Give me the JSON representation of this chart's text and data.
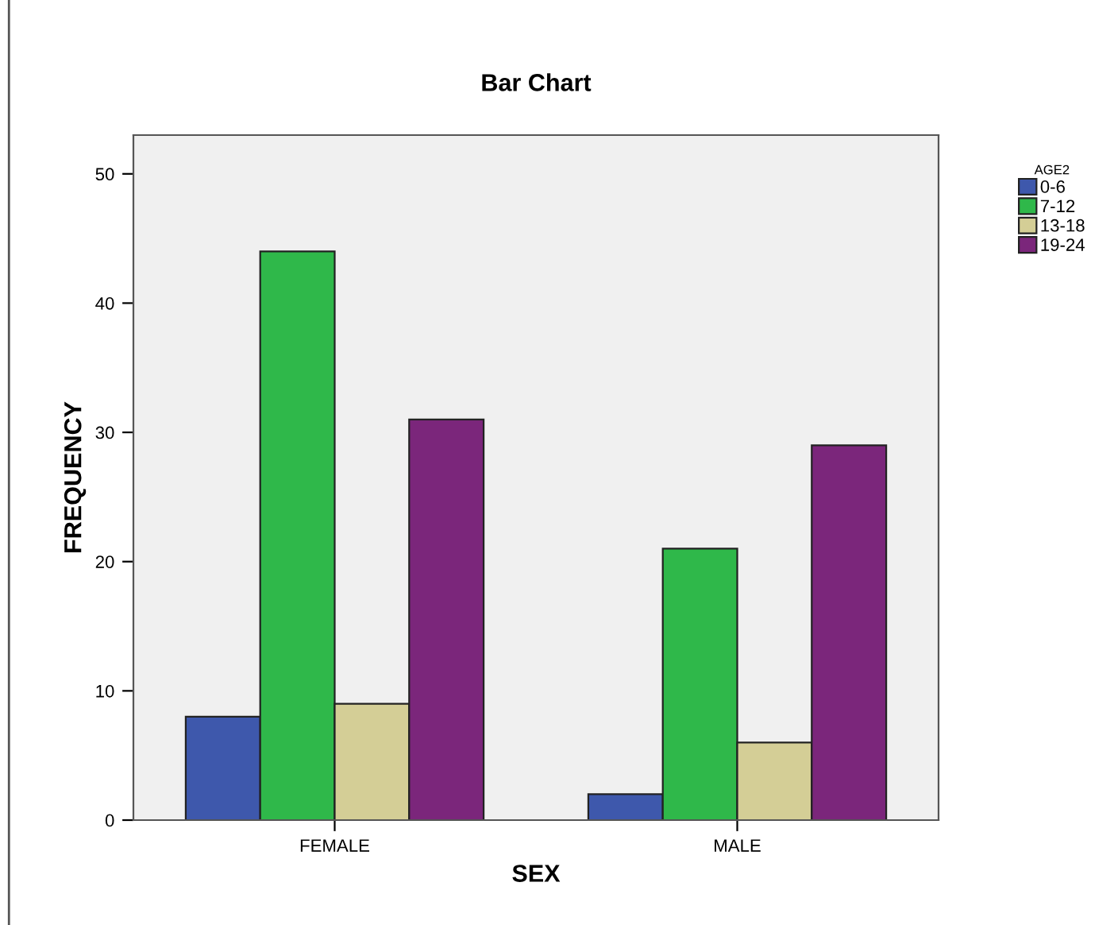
{
  "chart_data": {
    "type": "bar",
    "title": "Bar Chart",
    "xlabel": "SEX",
    "ylabel": "FREQUENCY",
    "legend_title": "AGE2",
    "categories": [
      "FEMALE",
      "MALE"
    ],
    "series": [
      {
        "name": "0-6",
        "color": "#3e58ac",
        "values": [
          8,
          2
        ]
      },
      {
        "name": "7-12",
        "color": "#2fb84a",
        "values": [
          44,
          21
        ]
      },
      {
        "name": "13-18",
        "color": "#d4ce96",
        "values": [
          9,
          6
        ]
      },
      {
        "name": "19-24",
        "color": "#7b267b",
        "values": [
          31,
          29
        ]
      }
    ],
    "ylim": [
      0,
      53
    ],
    "yticks": [
      0,
      10,
      20,
      30,
      40,
      50
    ],
    "grid": false,
    "legend": "top right"
  }
}
